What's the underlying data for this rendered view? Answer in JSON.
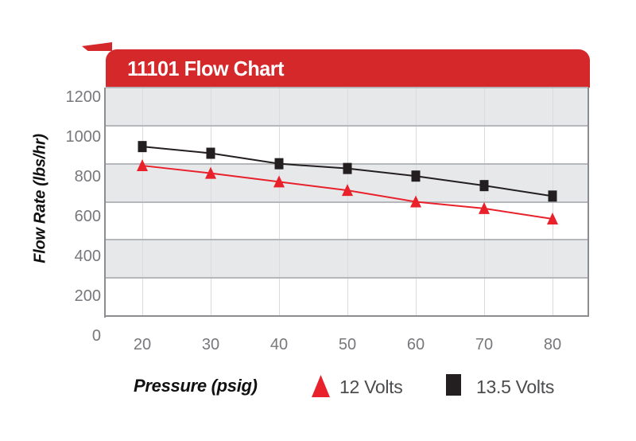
{
  "chart": {
    "title": "11101 Flow Chart",
    "y_axis_title": "Flow Rate (lbs/hr)",
    "x_axis_title": "Pressure (psig)"
  },
  "chart_data": {
    "type": "line",
    "x": [
      20,
      30,
      40,
      50,
      60,
      70,
      80
    ],
    "xticks": [
      "20",
      "30",
      "40",
      "50",
      "60",
      "70",
      "80"
    ],
    "yticks": [
      "0",
      "200",
      "400",
      "600",
      "800",
      "1000",
      "1200"
    ],
    "ylim": [
      0,
      1200
    ],
    "title": "11101 Flow Chart",
    "xlabel": "Pressure (psig)",
    "ylabel": "Flow Rate (lbs/hr)",
    "grid": "horizontal-bands-every-200-plus-faint-vertical-gridlines",
    "legend_position": "bottom",
    "series": [
      {
        "name": "12 Volts",
        "marker": "triangle",
        "color": "#E8212B",
        "values": [
          790,
          750,
          705,
          660,
          600,
          565,
          510
        ]
      },
      {
        "name": "13.5 Volts",
        "marker": "square",
        "color": "#231F20",
        "values": [
          890,
          855,
          800,
          775,
          735,
          685,
          630
        ]
      }
    ]
  },
  "colors": {
    "banner_red": "#D4282A",
    "series_red": "#E8212B",
    "series_black": "#231F20",
    "band_gray": "#E7E8EA",
    "band_line": "#B5B7BA",
    "v_gridline": "#DADBDC",
    "axis_line": "#8B8D90",
    "tick_text": "#77787B",
    "legend_text": "#4B4C4E"
  }
}
